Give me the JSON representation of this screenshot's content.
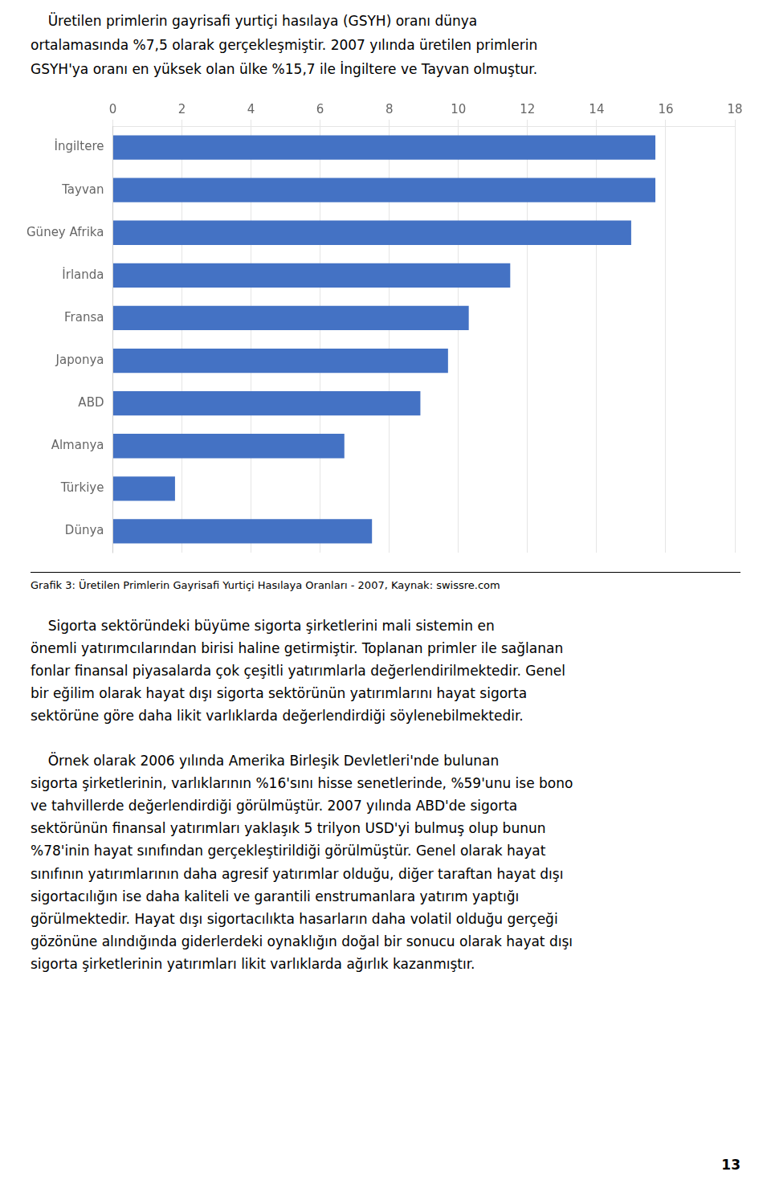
{
  "chart_data": {
    "type": "bar",
    "orientation": "horizontal",
    "title": "Grafik 3: Üretilen Primlerin Gayrisafi Yurtiçi Hasılaya Oranları - 2007, Kaynak: swissre.com",
    "categories": [
      "İngiltere",
      "Tayvan",
      "Güney Afrika",
      "İrlanda",
      "Fransa",
      "Japonya",
      "ABD",
      "Almanya",
      "Türkiye",
      "Dünya"
    ],
    "values": [
      15.7,
      15.7,
      15.0,
      11.5,
      10.3,
      9.7,
      8.9,
      6.7,
      1.8,
      7.5
    ],
    "color": "#4472C4",
    "xlim": [
      0,
      18
    ],
    "xticks": [
      0,
      2,
      4,
      6,
      8,
      10,
      12,
      14,
      16,
      18
    ],
    "grid": true
  },
  "intro_text": "    Üretilen primlerin gayrisafi yurtiçi hasılaya (GSYH) oranı dünya\nortalamasında %7,5 olarak gerçekleşmiştir. 2007 yılında üretilen primlerin\nGSYH'ya oranı en yüksek olan ülke %15,7 ile İngiltere ve Tayvan olmuştur.",
  "body_text": "    Sigorta sektöründeki büyüme sigorta şirketlerini mali sistemin en\nönemli yatırımcılarından birisi haline getirmiştir. Toplanan primler ile sağlanan\nfonlar finansal piyasalarda çok çeşitli yatırımlarla değerlendirilmektedir. Genel\nbir eğilim olarak hayat dışı sigorta sektörünün yatırımlarını hayat sigorta\nsektörüne göre daha likit varlıklarda değerlendirdiği söylenebilmektedir.\n\n    Örnek olarak 2006 yılında Amerika Birleşik Devletleri'nde bulunan\nsigorta şirketlerinin, varlıklarının %16'sını hisse senetlerinde, %59'unu ise bono\nve tahvillerde değerlendirdiği görülmüştür. 2007 yılında ABD'de sigorta\nsektörünün finansal yatırımları yaklaşık 5 trilyon USD'yi bulmuş olup bunun\n%78'inin hayat sınıfından gerçekleştirildiği görülmüştür. Genel olarak hayat\nsınıfının yatırımlarının daha agresif yatırımlar olduğu, diğer taraftan hayat dışı\nsigortacılığın ise daha kaliteli ve garantili enstrumanlara yatırım yaptığı\ngörülmektedir. Hayat dışı sigortacılıkta hasarların daha volatil olduğu gerçeği\ngözönüne alındığında giderlerdeki oynaklığın doğal bir sonucu olarak hayat dışı\nsigorta şirketlerinin yatırımları likit varlıklarda ağırlık kazanmıştır.",
  "page_number": "13"
}
